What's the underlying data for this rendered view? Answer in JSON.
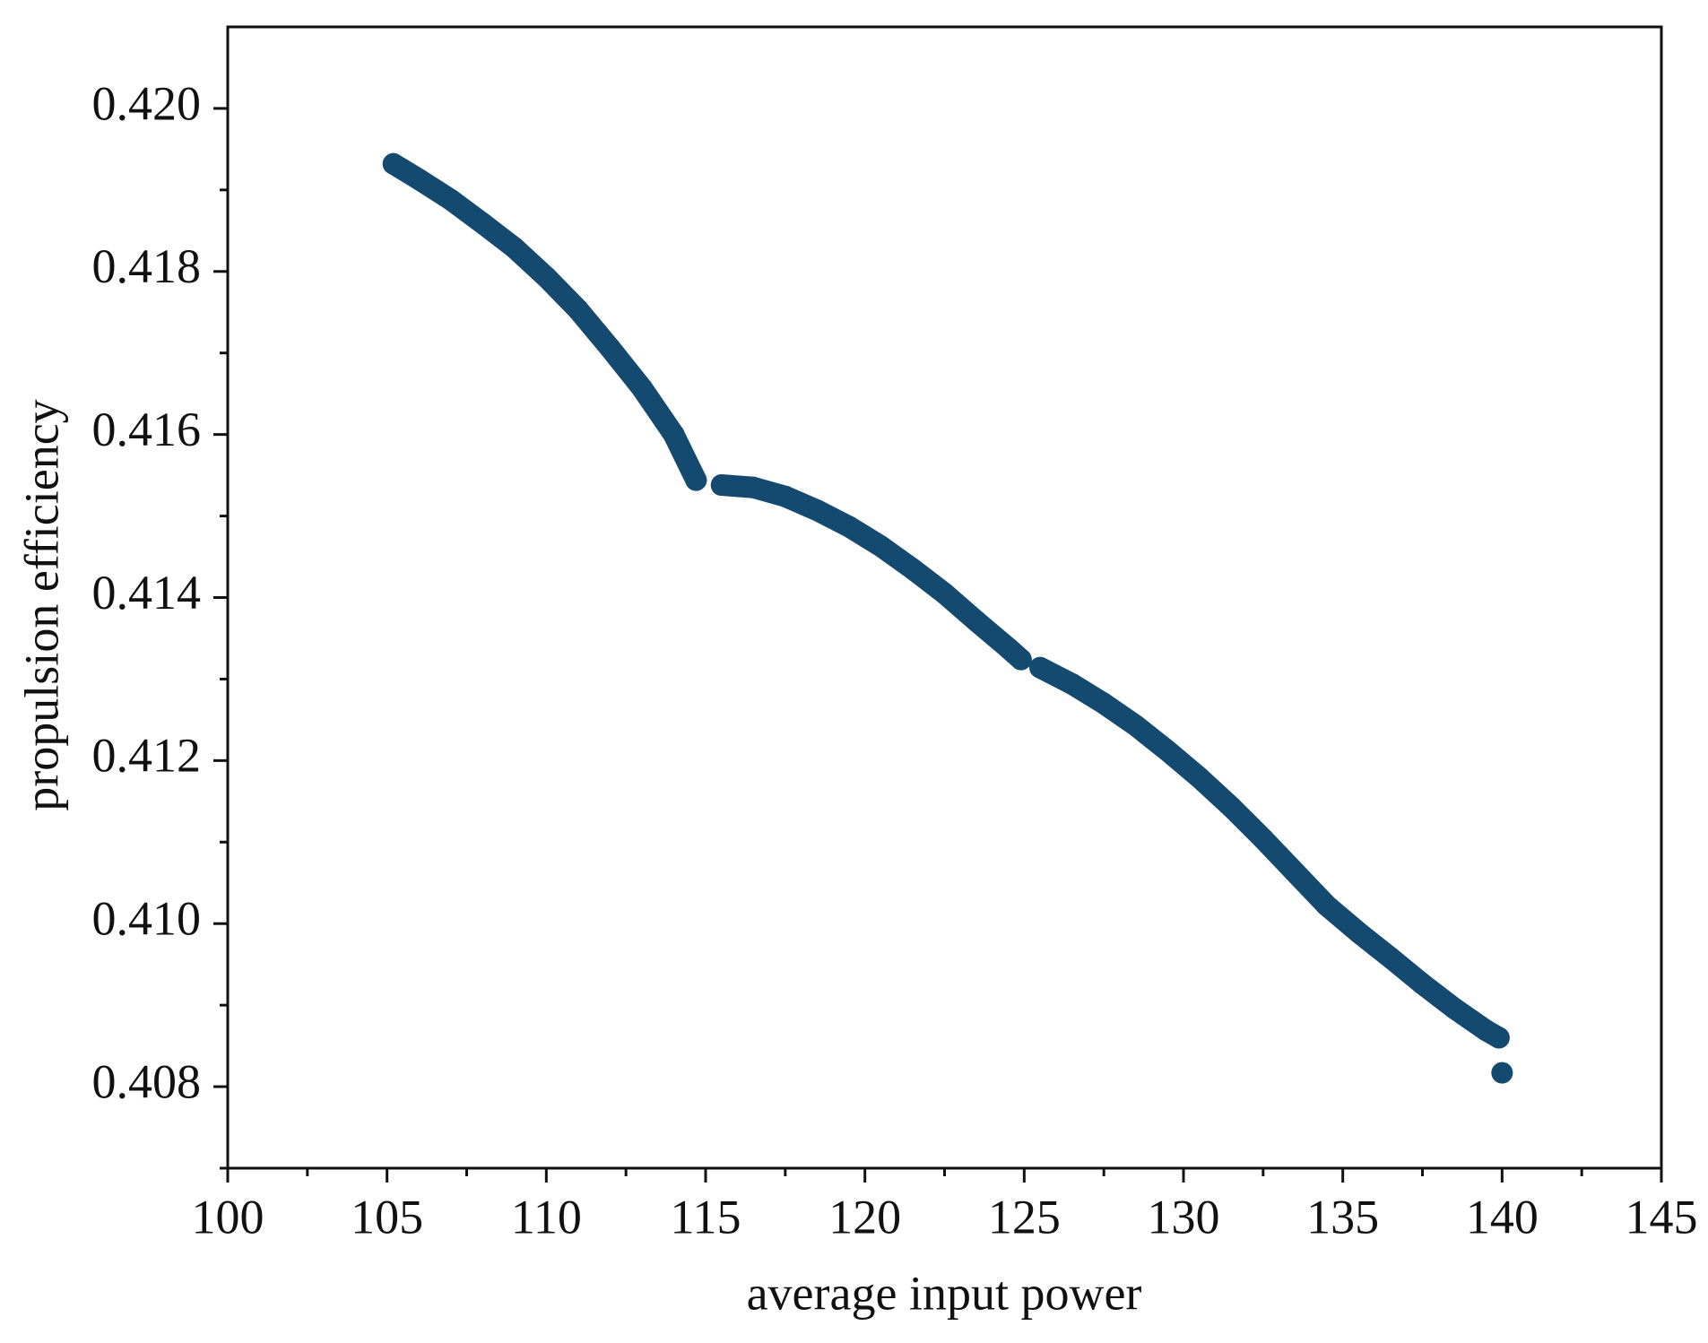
{
  "chart_data": {
    "type": "scatter",
    "x_label": "average input power",
    "y_label": "propulsion efficiency",
    "xlim": [
      100,
      145
    ],
    "ylim": [
      0.407,
      0.421
    ],
    "xticks": [
      100,
      105,
      110,
      115,
      120,
      125,
      130,
      135,
      140,
      145
    ],
    "xticks_minor": [
      102.5,
      107.5,
      112.5,
      117.5,
      122.5,
      127.5,
      132.5,
      137.5,
      142.5
    ],
    "yticks": [
      {
        "value": 0.408,
        "label": "0.408"
      },
      {
        "value": 0.41,
        "label": "0.410"
      },
      {
        "value": 0.412,
        "label": "0.412"
      },
      {
        "value": 0.414,
        "label": "0.414"
      },
      {
        "value": 0.416,
        "label": "0.416"
      },
      {
        "value": 0.418,
        "label": "0.418"
      },
      {
        "value": 0.42,
        "label": "0.420"
      }
    ],
    "yticks_minor": [
      0.407,
      0.409,
      0.411,
      0.413,
      0.415,
      0.417,
      0.419
    ],
    "grid": false,
    "color": "#154a70",
    "series": [
      {
        "x": [
          105.2,
          106,
          107,
          108,
          109,
          110,
          111,
          112,
          113,
          114,
          114.7
        ],
        "values": [
          0.41932,
          0.41913,
          0.41888,
          0.41859,
          0.41829,
          0.41793,
          0.41753,
          0.41706,
          0.41657,
          0.416,
          0.41544
        ]
      },
      {
        "x": [
          115.5,
          116.5,
          117.5,
          118.5,
          119.5,
          120.5,
          121.5,
          122.5,
          123.5,
          124.5,
          124.9
        ],
        "values": [
          0.41538,
          0.41535,
          0.41524,
          0.41507,
          0.41487,
          0.41463,
          0.41435,
          0.41405,
          0.41371,
          0.41338,
          0.41324
        ]
      },
      {
        "x": [
          125.5,
          126.5,
          127.5,
          128.5,
          129.5,
          130.5,
          131.5,
          132.5,
          133.5,
          134.5,
          135.5,
          136.5,
          137.5,
          138.5,
          139.5,
          139.9
        ],
        "values": [
          0.41314,
          0.41294,
          0.4127,
          0.41243,
          0.41212,
          0.41179,
          0.41143,
          0.41104,
          0.41063,
          0.41022,
          0.40989,
          0.40958,
          0.40926,
          0.40896,
          0.40869,
          0.4086
        ]
      },
      {
        "x": [
          140
        ],
        "values": [
          0.40817
        ]
      }
    ]
  }
}
